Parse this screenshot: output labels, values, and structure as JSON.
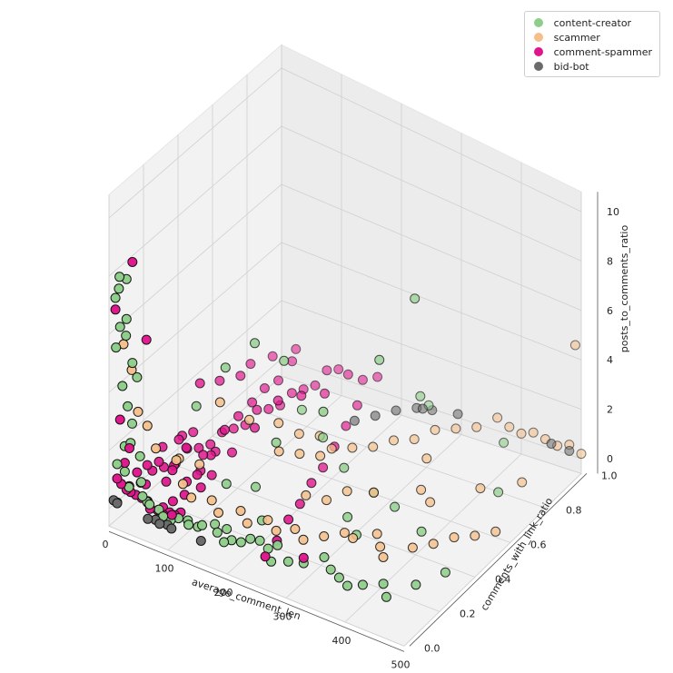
{
  "chart_data": {
    "type": "scatter",
    "projection": "3d",
    "xlabel": "average_comment_len",
    "ylabel": "comments_with_link_ratio",
    "zlabel": "posts_to_comments_ratio",
    "xlim": [
      0,
      500
    ],
    "ylim": [
      0,
      1
    ],
    "zlim": [
      0,
      10
    ],
    "x_ticks": [
      "0",
      "100",
      "200",
      "300",
      "400",
      "500"
    ],
    "y_ticks": [
      "0.0",
      "0.2",
      "0.4",
      "0.6",
      "0.8",
      "1.0"
    ],
    "z_ticks": [
      "0",
      "2",
      "4",
      "6",
      "8",
      "10"
    ],
    "grid": true,
    "legend_position": "top-right",
    "series": [
      {
        "name": "content-creator",
        "color": "#8fce8a",
        "points": [
          [
            5,
            0.02,
            7.2
          ],
          [
            8,
            0.03,
            7.5
          ],
          [
            12,
            0.02,
            8.0
          ],
          [
            15,
            0.05,
            7.8
          ],
          [
            10,
            0.03,
            6.2
          ],
          [
            18,
            0.04,
            6.5
          ],
          [
            20,
            0.03,
            6.0
          ],
          [
            6,
            0.02,
            5.5
          ],
          [
            25,
            0.05,
            5.0
          ],
          [
            14,
            0.03,
            4.2
          ],
          [
            20,
            0.04,
            3.5
          ],
          [
            30,
            0.06,
            4.5
          ],
          [
            10,
            0.1,
            2.5
          ],
          [
            12,
            0.05,
            2.0
          ],
          [
            22,
            0.05,
            2.2
          ],
          [
            35,
            0.06,
            1.8
          ],
          [
            8,
            0.02,
            1.5
          ],
          [
            15,
            0.04,
            1.2
          ],
          [
            40,
            0.05,
            1.0
          ],
          [
            25,
            0.03,
            0.8
          ],
          [
            45,
            0.04,
            0.6
          ],
          [
            50,
            0.05,
            0.4
          ],
          [
            60,
            0.03,
            0.5
          ],
          [
            70,
            0.05,
            0.3
          ],
          [
            80,
            0.04,
            0.2
          ],
          [
            90,
            0.05,
            0.1
          ],
          [
            100,
            0.06,
            0.2
          ],
          [
            110,
            0.08,
            0.1
          ],
          [
            120,
            0.05,
            0.2
          ],
          [
            130,
            0.07,
            0.1
          ],
          [
            140,
            0.06,
            0.3
          ],
          [
            150,
            0.1,
            0.2
          ],
          [
            160,
            0.08,
            0.1
          ],
          [
            170,
            0.1,
            0.2
          ],
          [
            180,
            0.05,
            0.1
          ],
          [
            190,
            0.06,
            0.2
          ],
          [
            200,
            0.08,
            0.1
          ],
          [
            210,
            0.1,
            0.2
          ],
          [
            220,
            0.12,
            0.1
          ],
          [
            240,
            0.1,
            0.1
          ],
          [
            250,
            0.12,
            0.2
          ],
          [
            260,
            0.05,
            0.1
          ],
          [
            280,
            0.08,
            0.1
          ],
          [
            300,
            0.1,
            0.1
          ],
          [
            320,
            0.15,
            0.2
          ],
          [
            340,
            0.12,
            0.1
          ],
          [
            360,
            0.1,
            0.1
          ],
          [
            380,
            0.08,
            0.1
          ],
          [
            400,
            0.1,
            0.2
          ],
          [
            420,
            0.15,
            0.1
          ],
          [
            440,
            0.1,
            0.1
          ],
          [
            460,
            0.2,
            0.1
          ],
          [
            480,
            0.3,
            0.1
          ],
          [
            300,
            0.35,
            0.3
          ],
          [
            350,
            0.45,
            0.5
          ],
          [
            250,
            0.5,
            0.8
          ],
          [
            200,
            0.55,
            1.2
          ],
          [
            150,
            0.6,
            1.5
          ],
          [
            100,
            0.5,
            4.0
          ],
          [
            120,
            0.6,
            3.0
          ],
          [
            80,
            0.4,
            3.5
          ],
          [
            60,
            0.3,
            2.5
          ],
          [
            230,
            0.45,
            3.0
          ],
          [
            180,
            0.35,
            2.0
          ],
          [
            280,
            0.6,
            4.5
          ],
          [
            310,
            0.7,
            6.5
          ],
          [
            290,
            0.8,
            2.0
          ],
          [
            400,
            0.9,
            0.5
          ],
          [
            450,
            0.7,
            0.3
          ],
          [
            260,
            0.95,
            0.5
          ],
          [
            330,
            0.3,
            0.2
          ],
          [
            200,
            0.2,
            0.2
          ],
          [
            160,
            0.3,
            0.5
          ],
          [
            140,
            0.2,
            1.0
          ],
          [
            300,
            0.5,
            0.3
          ],
          [
            410,
            0.4,
            0.4
          ]
        ]
      },
      {
        "name": "scammer",
        "color": "#f4bf8a",
        "points": [
          [
            10,
            0.05,
            5.5
          ],
          [
            15,
            0.08,
            4.5
          ],
          [
            20,
            0.1,
            3.0
          ],
          [
            30,
            0.12,
            2.5
          ],
          [
            50,
            0.1,
            2.0
          ],
          [
            70,
            0.15,
            1.5
          ],
          [
            90,
            0.12,
            1.0
          ],
          [
            110,
            0.1,
            0.8
          ],
          [
            130,
            0.15,
            0.6
          ],
          [
            150,
            0.12,
            0.5
          ],
          [
            170,
            0.18,
            0.4
          ],
          [
            190,
            0.15,
            0.3
          ],
          [
            210,
            0.2,
            0.3
          ],
          [
            230,
            0.18,
            0.2
          ],
          [
            250,
            0.22,
            0.2
          ],
          [
            270,
            0.2,
            0.1
          ],
          [
            290,
            0.25,
            0.1
          ],
          [
            310,
            0.3,
            0.1
          ],
          [
            330,
            0.28,
            0.2
          ],
          [
            350,
            0.35,
            0.1
          ],
          [
            370,
            0.3,
            0.1
          ],
          [
            390,
            0.25,
            0.2
          ],
          [
            410,
            0.35,
            0.1
          ],
          [
            430,
            0.4,
            0.1
          ],
          [
            450,
            0.45,
            0.2
          ],
          [
            470,
            0.5,
            0.1
          ],
          [
            490,
            0.55,
            0.1
          ],
          [
            200,
            0.6,
            0.5
          ],
          [
            220,
            0.65,
            0.4
          ],
          [
            240,
            0.7,
            0.3
          ],
          [
            260,
            0.75,
            0.4
          ],
          [
            280,
            0.8,
            0.3
          ],
          [
            300,
            0.85,
            0.5
          ],
          [
            320,
            0.9,
            0.4
          ],
          [
            340,
            0.95,
            0.3
          ],
          [
            360,
            1.0,
            0.5
          ],
          [
            380,
            1.0,
            0.3
          ],
          [
            400,
            1.0,
            0.2
          ],
          [
            420,
            1.0,
            0.4
          ],
          [
            440,
            1.0,
            0.3
          ],
          [
            460,
            1.0,
            0.2
          ],
          [
            480,
            1.0,
            0.4
          ],
          [
            500,
            1.0,
            0.2
          ],
          [
            490,
            1.0,
            4.5
          ],
          [
            100,
            0.3,
            3.0
          ],
          [
            120,
            0.4,
            2.0
          ],
          [
            140,
            0.5,
            1.5
          ],
          [
            160,
            0.55,
            1.0
          ],
          [
            180,
            0.6,
            0.8
          ],
          [
            60,
            0.2,
            1.2
          ],
          [
            80,
            0.25,
            0.9
          ],
          [
            350,
            0.6,
            0.2
          ],
          [
            300,
            0.5,
            0.3
          ],
          [
            250,
            0.4,
            0.2
          ],
          [
            420,
            0.7,
            0.2
          ],
          [
            380,
            0.55,
            0.3
          ],
          [
            460,
            0.8,
            0.1
          ],
          [
            330,
            0.7,
            0.6
          ],
          [
            270,
            0.45,
            0.4
          ],
          [
            230,
            0.35,
            0.5
          ],
          [
            210,
            0.5,
            0.9
          ],
          [
            190,
            0.45,
            1.1
          ],
          [
            170,
            0.4,
            1.3
          ]
        ]
      },
      {
        "name": "comment-spammer",
        "color": "#e0148c",
        "points": [
          [
            25,
            0.05,
            8.5
          ],
          [
            5,
            0.02,
            6.8
          ],
          [
            40,
            0.08,
            5.8
          ],
          [
            10,
            0.03,
            3.0
          ],
          [
            20,
            0.05,
            2.0
          ],
          [
            15,
            0.04,
            1.5
          ],
          [
            30,
            0.06,
            1.2
          ],
          [
            8,
            0.02,
            1.0
          ],
          [
            12,
            0.03,
            0.8
          ],
          [
            18,
            0.04,
            0.6
          ],
          [
            22,
            0.05,
            0.5
          ],
          [
            28,
            0.06,
            0.4
          ],
          [
            35,
            0.07,
            0.3
          ],
          [
            42,
            0.08,
            0.2
          ],
          [
            48,
            0.06,
            0.3
          ],
          [
            55,
            0.05,
            0.2
          ],
          [
            62,
            0.07,
            0.1
          ],
          [
            68,
            0.08,
            0.2
          ],
          [
            75,
            0.06,
            0.1
          ],
          [
            82,
            0.07,
            0.2
          ],
          [
            88,
            0.08,
            0.1
          ],
          [
            95,
            0.09,
            0.2
          ],
          [
            5,
            0.1,
            0.3
          ],
          [
            10,
            0.15,
            0.2
          ],
          [
            15,
            0.2,
            0.4
          ],
          [
            20,
            0.25,
            0.3
          ],
          [
            25,
            0.3,
            0.2
          ],
          [
            30,
            0.35,
            0.5
          ],
          [
            35,
            0.4,
            0.3
          ],
          [
            40,
            0.45,
            0.2
          ],
          [
            45,
            0.5,
            0.4
          ],
          [
            50,
            0.55,
            0.3
          ],
          [
            55,
            0.6,
            0.2
          ],
          [
            60,
            0.65,
            0.5
          ],
          [
            65,
            0.7,
            0.3
          ],
          [
            70,
            0.75,
            0.2
          ],
          [
            75,
            0.8,
            0.4
          ],
          [
            80,
            0.85,
            0.3
          ],
          [
            85,
            0.9,
            0.2
          ],
          [
            90,
            0.95,
            0.5
          ],
          [
            95,
            1.0,
            0.3
          ],
          [
            100,
            0.5,
            1.0
          ],
          [
            110,
            0.6,
            1.5
          ],
          [
            120,
            0.7,
            1.2
          ],
          [
            130,
            0.8,
            0.8
          ],
          [
            140,
            0.9,
            1.0
          ],
          [
            150,
            0.95,
            0.6
          ],
          [
            160,
            1.0,
            0.5
          ],
          [
            170,
            0.85,
            0.4
          ],
          [
            180,
            0.75,
            0.3
          ],
          [
            190,
            0.65,
            0.2
          ],
          [
            200,
            0.55,
            0.1
          ],
          [
            210,
            0.45,
            0.2
          ],
          [
            220,
            0.35,
            0.1
          ],
          [
            230,
            0.25,
            0.2
          ],
          [
            240,
            0.15,
            0.1
          ],
          [
            250,
            0.05,
            0.2
          ],
          [
            300,
            0.1,
            0.3
          ],
          [
            8,
            0.5,
            1.8
          ],
          [
            12,
            0.6,
            1.4
          ],
          [
            18,
            0.7,
            1.1
          ],
          [
            6,
            0.8,
            0.9
          ],
          [
            14,
            0.9,
            0.7
          ],
          [
            24,
            1.0,
            0.5
          ],
          [
            32,
            0.95,
            0.4
          ],
          [
            38,
            0.85,
            0.3
          ],
          [
            44,
            0.75,
            0.6
          ],
          [
            52,
            0.65,
            0.7
          ],
          [
            58,
            0.55,
            0.8
          ],
          [
            64,
            0.45,
            0.9
          ],
          [
            70,
            0.35,
            0.6
          ],
          [
            76,
            0.25,
            0.5
          ],
          [
            84,
            0.15,
            0.4
          ],
          [
            92,
            0.05,
            0.3
          ],
          [
            3,
            0.3,
            0.6
          ],
          [
            7,
            0.4,
            0.5
          ],
          [
            11,
            0.45,
            0.4
          ],
          [
            16,
            0.35,
            0.7
          ],
          [
            21,
            0.15,
            0.9
          ],
          [
            26,
            0.2,
            0.8
          ],
          [
            33,
            0.1,
            0.6
          ],
          [
            37,
            0.25,
            0.5
          ],
          [
            43,
            0.3,
            0.9
          ],
          [
            49,
            0.2,
            0.7
          ],
          [
            53,
            0.15,
            0.6
          ],
          [
            57,
            0.35,
            0.5
          ],
          [
            63,
            0.4,
            0.4
          ],
          [
            67,
            0.3,
            0.3
          ],
          [
            73,
            0.2,
            0.5
          ],
          [
            79,
            0.1,
            0.4
          ],
          [
            86,
            0.3,
            0.3
          ],
          [
            91,
            0.4,
            0.6
          ],
          [
            97,
            0.2,
            0.5
          ]
        ]
      },
      {
        "name": "bid-bot",
        "color": "#6b6b6b",
        "points": [
          [
            2,
            0.02,
            0.2
          ],
          [
            5,
            0.03,
            0.1
          ],
          [
            8,
            0.02,
            0.15
          ],
          [
            60,
            0.02,
            0.05
          ],
          [
            70,
            0.03,
            0.05
          ],
          [
            80,
            0.02,
            0.05
          ],
          [
            90,
            0.03,
            0.05
          ],
          [
            100,
            0.02,
            0.05
          ],
          [
            150,
            0.02,
            0.05
          ],
          [
            180,
            0.8,
            0.2
          ],
          [
            200,
            0.85,
            0.25
          ],
          [
            220,
            0.9,
            0.3
          ],
          [
            240,
            0.95,
            0.25
          ],
          [
            250,
            0.95,
            0.3
          ],
          [
            260,
            0.97,
            0.2
          ],
          [
            300,
            0.98,
            0.3
          ],
          [
            450,
            1.0,
            0.2
          ],
          [
            480,
            1.0,
            0.15
          ]
        ]
      }
    ]
  }
}
